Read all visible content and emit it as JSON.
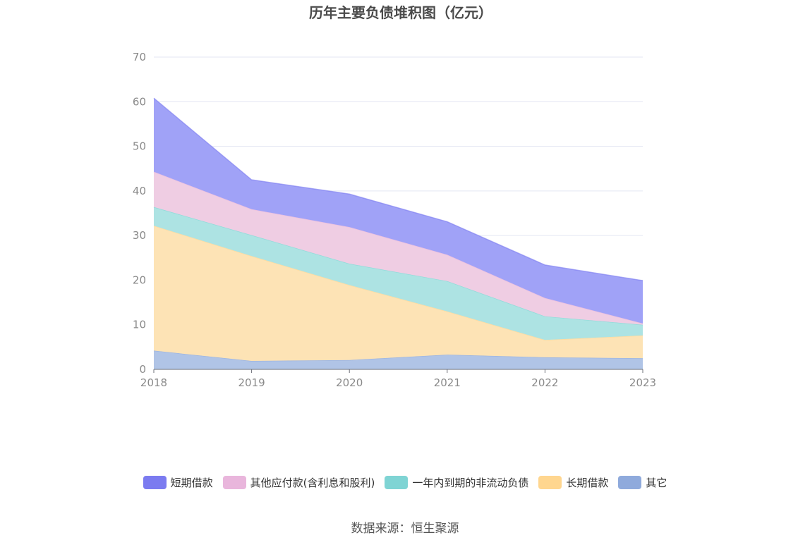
{
  "title": "历年主要负债堆积图（亿元）",
  "source": "数据来源：恒生聚源",
  "chart_data": {
    "type": "area",
    "stacked": true,
    "x": [
      "2018",
      "2019",
      "2020",
      "2021",
      "2022",
      "2023"
    ],
    "ylim": [
      0,
      70
    ],
    "yticks": [
      0,
      10,
      20,
      30,
      40,
      50,
      60,
      70
    ],
    "grid": true,
    "legend_position": "bottom",
    "series": [
      {
        "name": "其它",
        "color": "#8FAADC",
        "fill": "#B0C4E6",
        "values": [
          4.2,
          1.9,
          2.1,
          3.3,
          2.7,
          2.5
        ]
      },
      {
        "name": "长期借款",
        "color": "#FFD68F",
        "fill": "#FDE3B5",
        "values": [
          28.0,
          23.5,
          16.8,
          9.7,
          3.9,
          5.1
        ]
      },
      {
        "name": "一年内到期的非流动负债",
        "color": "#7FD4D4",
        "fill": "#ADE3E3",
        "values": [
          4.2,
          4.7,
          4.8,
          6.8,
          5.3,
          2.4
        ]
      },
      {
        "name": "其他应付款(含利息和股利)",
        "color": "#E9B6DC",
        "fill": "#EFCDE3",
        "values": [
          7.9,
          5.8,
          8.2,
          5.9,
          4.1,
          0.3
        ]
      },
      {
        "name": "短期借款",
        "color": "#7B7BF0",
        "fill": "#A0A2F7",
        "values": [
          16.5,
          6.6,
          7.4,
          7.4,
          7.4,
          9.6
        ]
      }
    ]
  },
  "legend_order": [
    {
      "name": "短期借款",
      "color": "#7B7BF0"
    },
    {
      "name": "其他应付款(含利息和股利)",
      "color": "#E9B6DC"
    },
    {
      "name": "一年内到期的非流动负债",
      "color": "#7FD4D4"
    },
    {
      "name": "长期借款",
      "color": "#FFD68F"
    },
    {
      "name": "其它",
      "color": "#8FAADC"
    }
  ]
}
